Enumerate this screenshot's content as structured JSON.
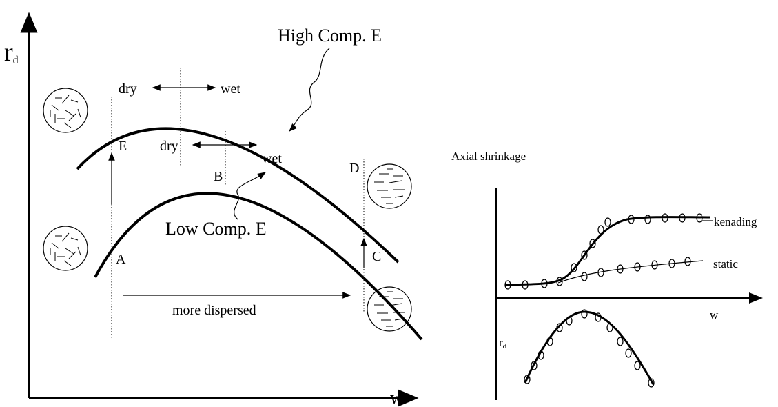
{
  "left": {
    "y_axis": {
      "main": "r",
      "sub": "d"
    },
    "x_axis": "w",
    "high_label": "High Comp. E",
    "low_label": "Low Comp. E",
    "upper_dry": "dry",
    "upper_wet": "wet",
    "lower_dry": "dry",
    "lower_wet": "wet",
    "points": {
      "E": "E",
      "A": "A",
      "B": "B",
      "C": "C",
      "D": "D"
    },
    "dispersed": "more dispersed"
  },
  "right": {
    "y_axis": "Axial shrinkage",
    "x_axis": "w",
    "rd": {
      "main": "r",
      "sub": "d"
    },
    "kneading": "kenading",
    "static": "static"
  }
}
